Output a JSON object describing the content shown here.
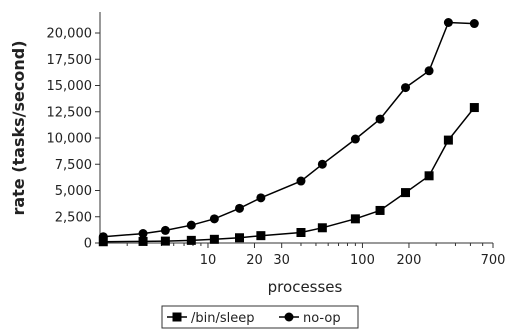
{
  "chart_data": {
    "type": "line",
    "title": "",
    "xlabel": "processes",
    "ylabel": "rate (tasks/second)",
    "x_scale": "log",
    "xlim": [
      2,
      700
    ],
    "ylim": [
      0,
      22000
    ],
    "x_tick_labels": [
      "10",
      "20",
      "30",
      "100",
      "200",
      "700"
    ],
    "x_tick_values": [
      10,
      20,
      30,
      100,
      200,
      700
    ],
    "y_tick_labels": [
      "0",
      "2,500",
      "5,000",
      "7,500",
      "10,000",
      "12,500",
      "15,000",
      "17,500",
      "20,000"
    ],
    "y_tick_values": [
      0,
      2500,
      5000,
      7500,
      10000,
      12500,
      15000,
      17500,
      20000
    ],
    "grid": false,
    "legend_position": "bottom-center",
    "series": [
      {
        "name": "/bin/sleep",
        "marker": "square",
        "color": "#000000",
        "points": [
          [
            2.1,
            120
          ],
          [
            3.8,
            150
          ],
          [
            5.3,
            180
          ],
          [
            7.8,
            250
          ],
          [
            11,
            350
          ],
          [
            16,
            500
          ],
          [
            22,
            700
          ],
          [
            40,
            1000
          ],
          [
            55,
            1450
          ],
          [
            90,
            2300
          ],
          [
            130,
            3100
          ],
          [
            190,
            4800
          ],
          [
            270,
            6400
          ],
          [
            360,
            9800
          ],
          [
            530,
            12900
          ]
        ]
      },
      {
        "name": "no-op",
        "marker": "circle",
        "color": "#000000",
        "points": [
          [
            2.1,
            600
          ],
          [
            3.8,
            900
          ],
          [
            5.3,
            1200
          ],
          [
            7.8,
            1700
          ],
          [
            11,
            2300
          ],
          [
            16,
            3300
          ],
          [
            22,
            4300
          ],
          [
            40,
            5900
          ],
          [
            55,
            7500
          ],
          [
            90,
            9900
          ],
          [
            130,
            11800
          ],
          [
            190,
            14800
          ],
          [
            270,
            16400
          ],
          [
            360,
            21000
          ],
          [
            530,
            20900
          ]
        ]
      }
    ]
  }
}
